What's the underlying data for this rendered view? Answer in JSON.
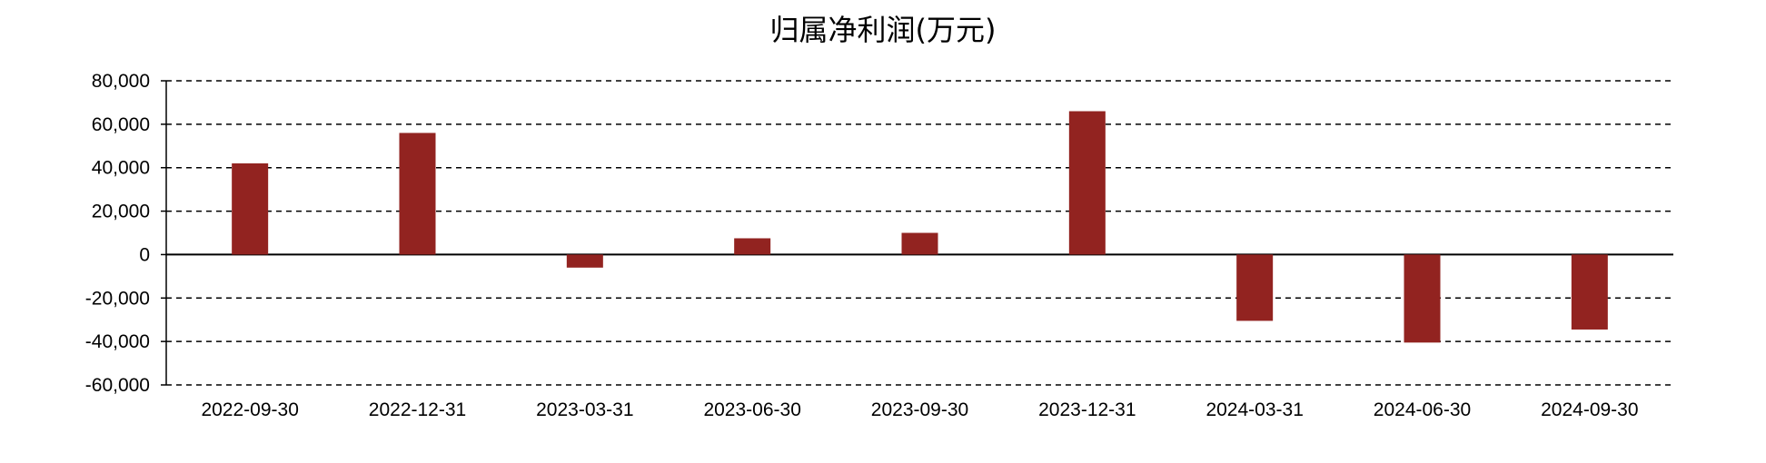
{
  "chart_data": {
    "type": "bar",
    "title": "归属净利润(万元)",
    "xlabel": "",
    "ylabel": "",
    "categories": [
      "2022-09-30",
      "2022-12-31",
      "2023-03-31",
      "2023-06-30",
      "2023-09-30",
      "2023-12-31",
      "2024-03-31",
      "2024-06-30",
      "2024-09-30"
    ],
    "values": [
      42000,
      56000,
      -6000,
      7500,
      10000,
      66000,
      -30500,
      -40500,
      -34500
    ],
    "ylim": [
      -60000,
      80000
    ],
    "yticks": [
      80000,
      60000,
      40000,
      20000,
      0,
      -20000,
      -40000,
      -60000
    ],
    "ytick_labels": [
      "80,000",
      "60,000",
      "40,000",
      "20,000",
      "0",
      "-20,000",
      "-40,000",
      "-60,000"
    ],
    "grid": true,
    "grid_style": "dashed",
    "legend": "none",
    "bar_color": "#922320"
  }
}
